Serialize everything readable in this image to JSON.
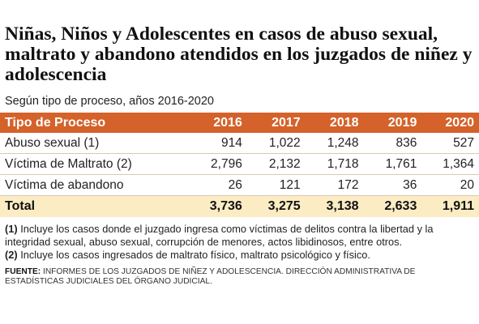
{
  "title": "Niñas, Niños y Adolescentes en casos de abuso sexual, maltrato y abandono atendidos en los juzgados de niñez y adolescencia",
  "subtitle": "Según tipo de proceso, años 2016-2020",
  "table": {
    "headers": [
      "Tipo de Proceso",
      "2016",
      "2017",
      "2018",
      "2019",
      "2020"
    ],
    "rows": [
      [
        "Abuso sexual (1)",
        "914",
        "1,022",
        "1,248",
        "836",
        "527"
      ],
      [
        "Víctima de Maltrato (2)",
        "2,796",
        "2,132",
        "1,718",
        "1,761",
        "1,364"
      ],
      [
        "Víctima de abandono",
        "26",
        "121",
        "172",
        "36",
        "20"
      ]
    ],
    "total": [
      "Total",
      "3,736",
      "3,275",
      "3,138",
      "2,633",
      "1,911"
    ]
  },
  "notes": [
    {
      "marker": "(1)",
      "text": " Incluye los casos donde el juzgado ingresa como víctimas de delitos contra la libertad y la integridad sexual, abuso sexual, corrupción de menores, actos libidinosos, entre otros."
    },
    {
      "marker": "(2)",
      "text": " Incluye los casos ingresados de maltrato físico, maltrato psicológico y físico."
    }
  ],
  "source": {
    "label": "FUENTE:",
    "text": " Informes de los Juzgados de Niñez y Adolescencia. Dirección Administrativa de Estadísticas Judiciales del Órgano Judicial."
  },
  "colors": {
    "header_bg": "#d4622a",
    "total_bg": "#fbecc4"
  }
}
